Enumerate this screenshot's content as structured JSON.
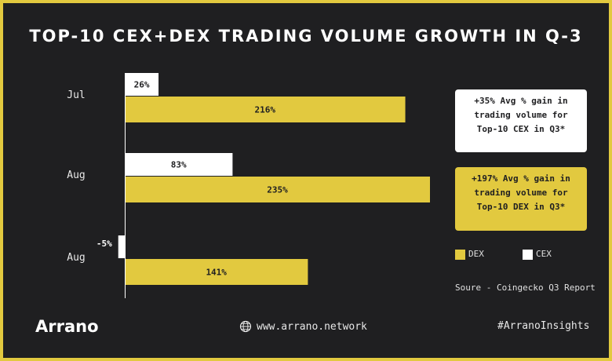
{
  "title": "TOP-10 CEX+DEX TRADING VOLUME GROWTH IN Q-3",
  "colors": {
    "dex": "#e2c93f",
    "cex": "#ffffff",
    "background": "#1f1f21",
    "frame": "#e2c93f"
  },
  "chart_data": {
    "type": "bar",
    "orientation": "horizontal",
    "categories": [
      "Jul",
      "Aug",
      "Aug"
    ],
    "series": [
      {
        "name": "CEX",
        "values": [
          26,
          83,
          -5
        ],
        "labels": [
          "26%",
          "83%",
          "-5%"
        ]
      },
      {
        "name": "DEX",
        "values": [
          216,
          235,
          141
        ],
        "labels": [
          "216%",
          "235%",
          "141%"
        ]
      }
    ],
    "xlim": [
      -5,
      235
    ],
    "grid": false
  },
  "notes": {
    "cex": "+35% Avg % gain in trading volume for Top-10 CEX in Q3*",
    "dex": "+197% Avg % gain in trading volume for Top-10 DEX in Q3*"
  },
  "legend": {
    "dex": "DEX",
    "cex": "CEX"
  },
  "source": "Soure - Coingecko Q3 Report",
  "footer": {
    "brand": "Arrano",
    "website": "www.arrano.network",
    "hashtag": "#ArranoInsights",
    "website_icon": "globe-icon"
  }
}
